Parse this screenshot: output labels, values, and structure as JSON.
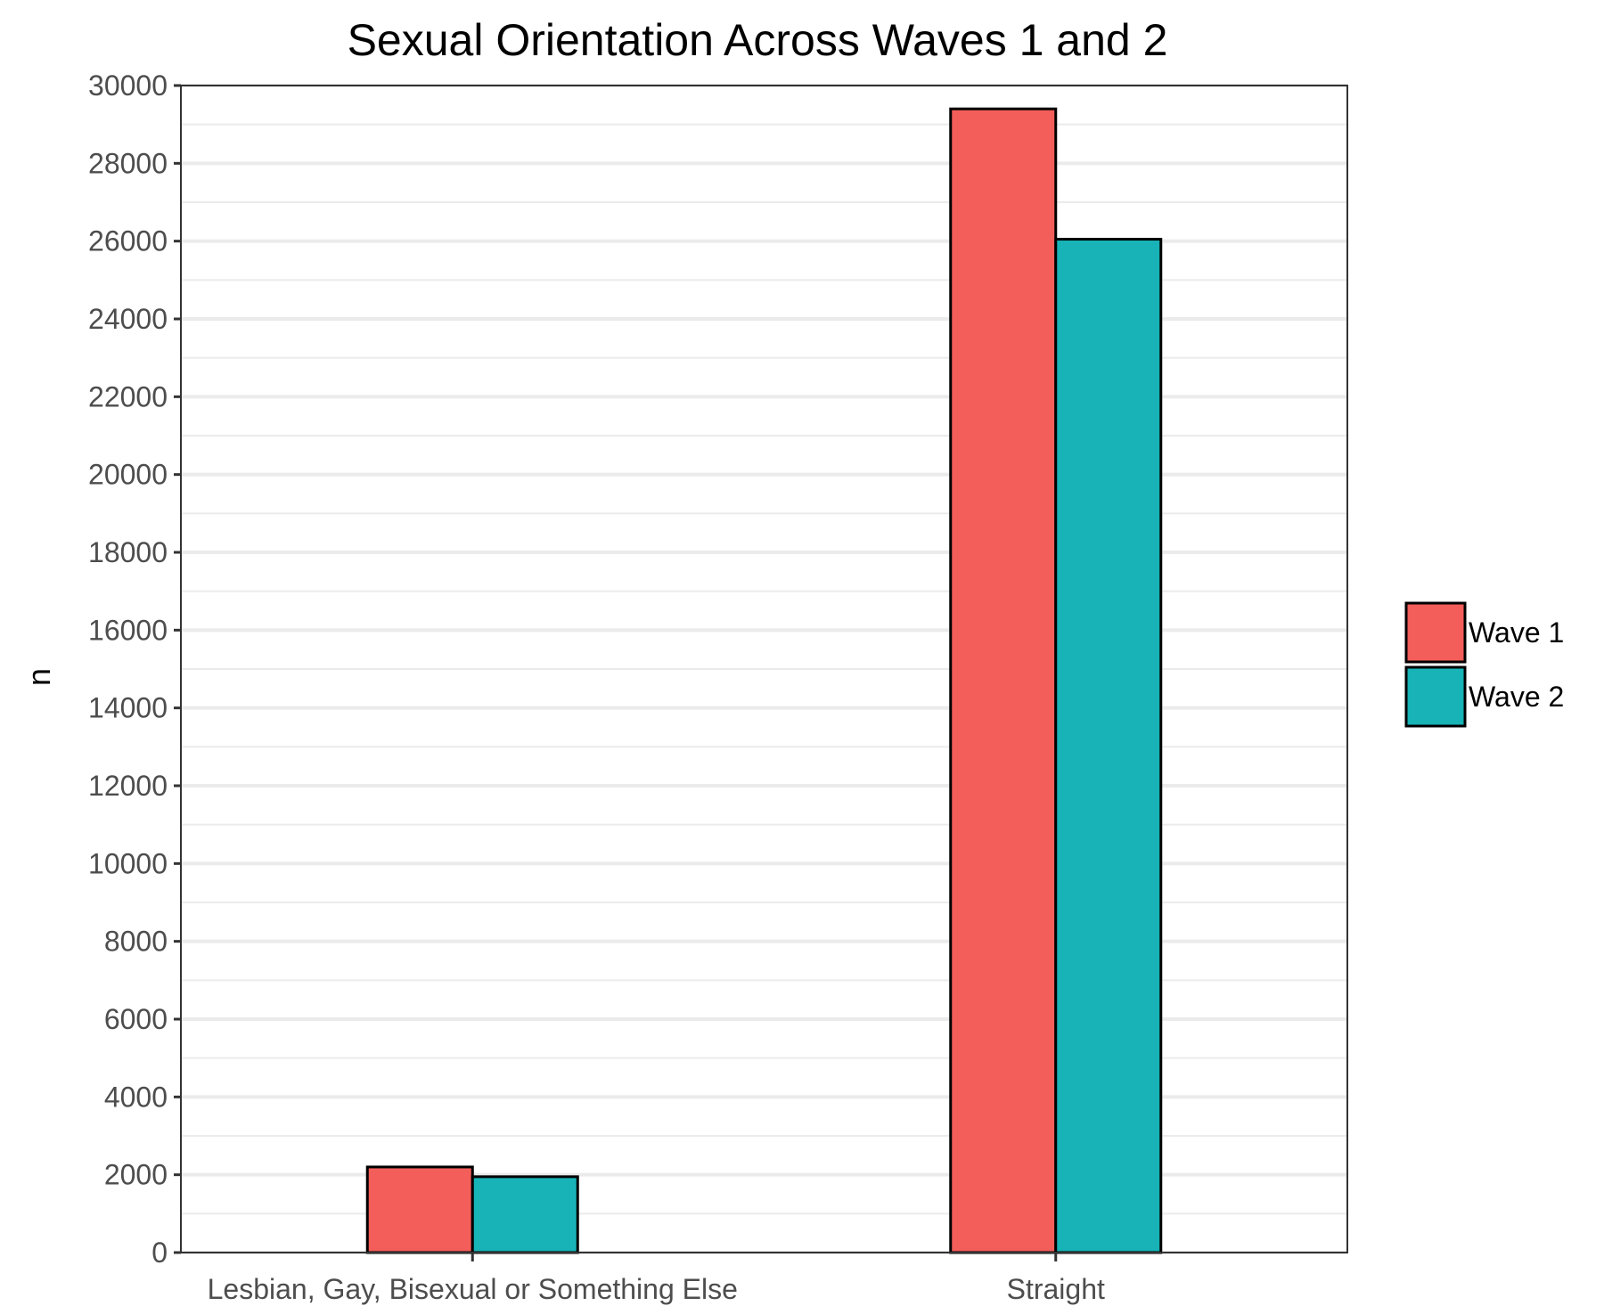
{
  "chart_data": {
    "type": "bar",
    "title": "Sexual Orientation Across Waves 1 and 2",
    "xlabel": "",
    "ylabel": "n",
    "categories": [
      "Lesbian, Gay, Bisexual or Something Else",
      "Straight"
    ],
    "series": [
      {
        "name": "Wave 1",
        "color": "#F35E5A",
        "values": [
          2200,
          29400
        ]
      },
      {
        "name": "Wave 2",
        "color": "#17B3B7",
        "values": [
          1950,
          26050
        ]
      }
    ],
    "ylim": [
      0,
      30000
    ],
    "yticks": [
      "0",
      "2000",
      "4000",
      "6000",
      "8000",
      "10000",
      "12000",
      "14000",
      "16000",
      "18000",
      "20000",
      "22000",
      "24000",
      "26000",
      "28000",
      "30000"
    ],
    "grid": true,
    "legend": "right"
  }
}
